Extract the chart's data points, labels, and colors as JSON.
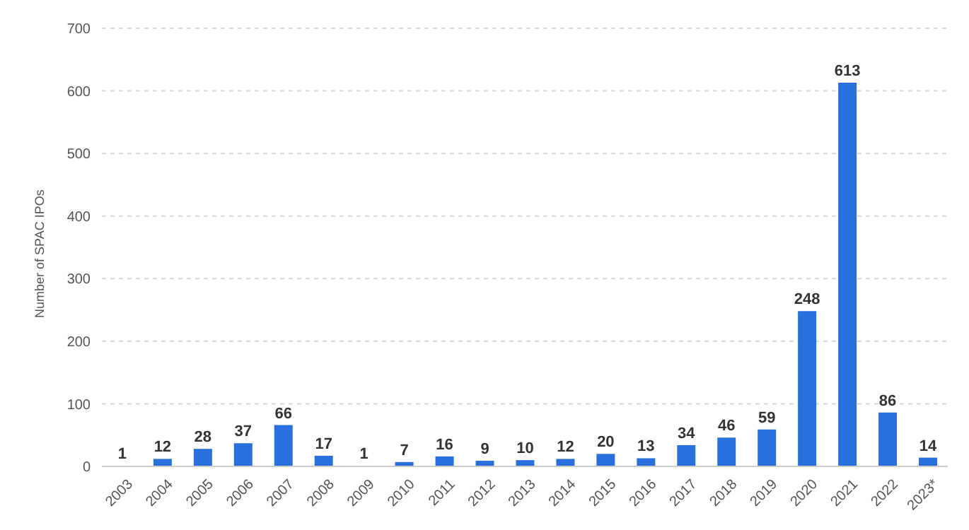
{
  "chart_data": {
    "type": "bar",
    "ylabel": "Number of SPAC IPOs",
    "categories": [
      "2003",
      "2004",
      "2005",
      "2006",
      "2007",
      "2008",
      "2009",
      "2010",
      "2011",
      "2012",
      "2013",
      "2014",
      "2015",
      "2016",
      "2017",
      "2018",
      "2019",
      "2020",
      "2021",
      "2022",
      "2023*"
    ],
    "values": [
      1,
      12,
      28,
      37,
      66,
      17,
      1,
      7,
      16,
      9,
      10,
      12,
      20,
      13,
      34,
      46,
      59,
      248,
      613,
      86,
      14
    ],
    "color": "#2a70dc",
    "ylim": [
      0,
      700
    ],
    "yticks": [
      0,
      100,
      200,
      300,
      400,
      500,
      600,
      700
    ],
    "grid": "y",
    "data_labels": true
  }
}
